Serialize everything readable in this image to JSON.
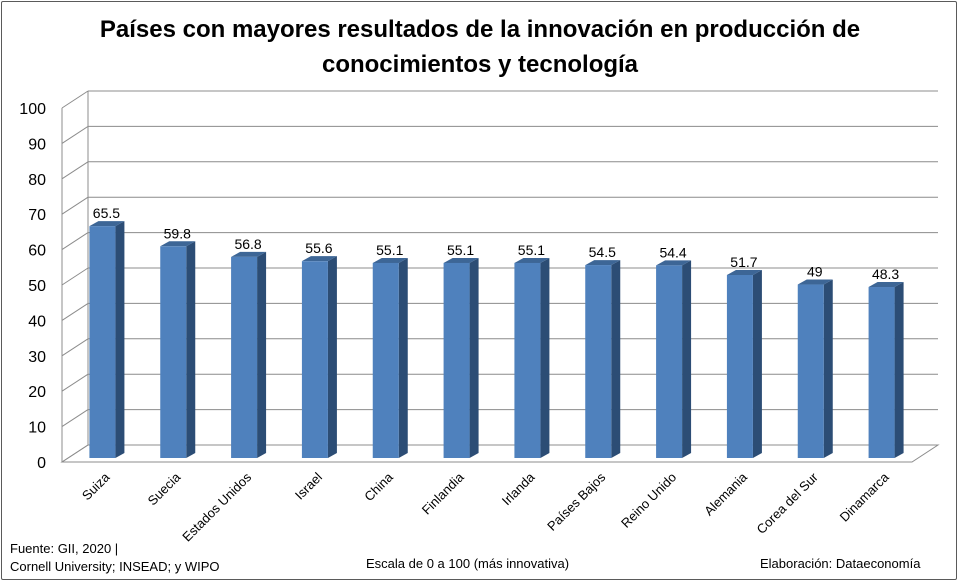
{
  "chart_data": {
    "type": "bar",
    "title": "Países con mayores resultados de la innovación en producción de conocimientos y tecnología",
    "categories": [
      "Suiza",
      "Suecia",
      "Estados Unidos",
      "Israel",
      "China",
      "Finlandia",
      "Irlanda",
      "Países Bajos",
      "Reino Unido",
      "Alemania",
      "Corea del Sur",
      "Dinamarca"
    ],
    "values": [
      65.5,
      59.8,
      56.8,
      55.6,
      55.1,
      55.1,
      55.1,
      54.5,
      54.4,
      51.7,
      49,
      48.3
    ],
    "value_labels": [
      "65.5",
      "59.8",
      "56.8",
      "55.6",
      "55.1",
      "55.1",
      "55.1",
      "54.5",
      "54.4",
      "51.7",
      "49",
      "48.3"
    ],
    "ylim": [
      0,
      100
    ],
    "yticks": [
      "0",
      "10",
      "20",
      "30",
      "40",
      "50",
      "60",
      "70",
      "80",
      "90",
      "100"
    ],
    "grid": true,
    "style": "3d-bar",
    "colors": {
      "bar_front": "#4f81bd",
      "bar_side": "#2c4d75",
      "bar_top": "#3d6696",
      "grid": "#8c8c8c"
    }
  },
  "footer": {
    "source_line1": "Fuente:  GII, 2020 |",
    "source_line2": "Cornell University; INSEAD; y WIPO",
    "scale_note": "Escala de 0 a 100 (más innovativa)",
    "credit": "Elaboración: Dataeconomía"
  }
}
